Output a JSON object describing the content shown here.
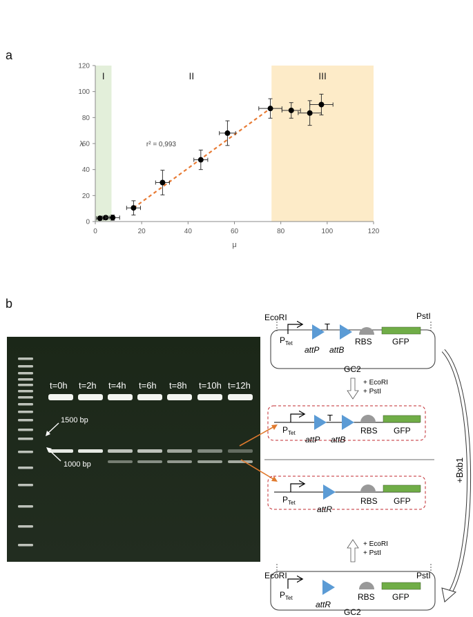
{
  "panel_a": {
    "letter": "a",
    "regions": [
      {
        "label": "I",
        "x_from": 0,
        "x_to": 7,
        "color": "#e3efda"
      },
      {
        "label": "II",
        "x_from": 7,
        "x_to": 76,
        "color": "#ffffff"
      },
      {
        "label": "III",
        "x_from": 76,
        "x_to": 120,
        "color": "#fdebc8"
      }
    ],
    "annotation": "r² = 0,993"
  },
  "chart_data": {
    "type": "scatter",
    "xlabel": "μ",
    "ylabel": "λ",
    "xlim": [
      0,
      120
    ],
    "ylim": [
      0,
      120
    ],
    "xticks": [
      0,
      20,
      40,
      60,
      80,
      100,
      120
    ],
    "yticks": [
      0,
      20,
      40,
      60,
      80,
      100,
      120
    ],
    "grid": false,
    "points": [
      {
        "x": 2,
        "y": 2.5,
        "xerr": 1.5,
        "yerr": 1.5
      },
      {
        "x": 4.5,
        "y": 3,
        "xerr": 1.5,
        "yerr": 1.5
      },
      {
        "x": 7.5,
        "y": 3,
        "xerr": 3,
        "yerr": 2
      },
      {
        "x": 16.5,
        "y": 10.5,
        "xerr": 3,
        "yerr": 5.5
      },
      {
        "x": 29,
        "y": 30,
        "xerr": 3,
        "yerr": 9.5
      },
      {
        "x": 45.5,
        "y": 47.5,
        "xerr": 3,
        "yerr": 7.5
      },
      {
        "x": 57,
        "y": 68,
        "xerr": 3.5,
        "yerr": 9.5
      },
      {
        "x": 75.5,
        "y": 87,
        "xerr": 5,
        "yerr": 7.5
      },
      {
        "x": 84.5,
        "y": 85.5,
        "xerr": 4,
        "yerr": 6
      },
      {
        "x": 92.5,
        "y": 83.5,
        "xerr": 5,
        "yerr": 9.5
      },
      {
        "x": 97.5,
        "y": 90,
        "xerr": 5,
        "yerr": 8
      }
    ],
    "fit_line": {
      "x": [
        16.5,
        75.5
      ],
      "y": [
        10.5,
        87
      ],
      "color": "#e87b35",
      "style": "dashed"
    }
  },
  "panel_b": {
    "letter": "b",
    "gel": {
      "lane_labels": [
        "t=0h",
        "t=2h",
        "t=4h",
        "t=6h",
        "t=8h",
        "t=10h",
        "t=12h"
      ],
      "marker_labels": [
        "1500 bp",
        "1000 bp"
      ]
    },
    "diagram": {
      "enzymes": [
        "EcoRI",
        "PstI"
      ],
      "promoter": "P",
      "promoter_sub": "Tet",
      "sites": [
        "attP",
        "attB",
        "attR"
      ],
      "parts": [
        "RBS",
        "GFP"
      ],
      "plasmid_name": "GC2",
      "digest": [
        "+ EcoRI",
        "+ PstI"
      ],
      "recombinase": "+Bxb1",
      "terminator": "T"
    }
  }
}
